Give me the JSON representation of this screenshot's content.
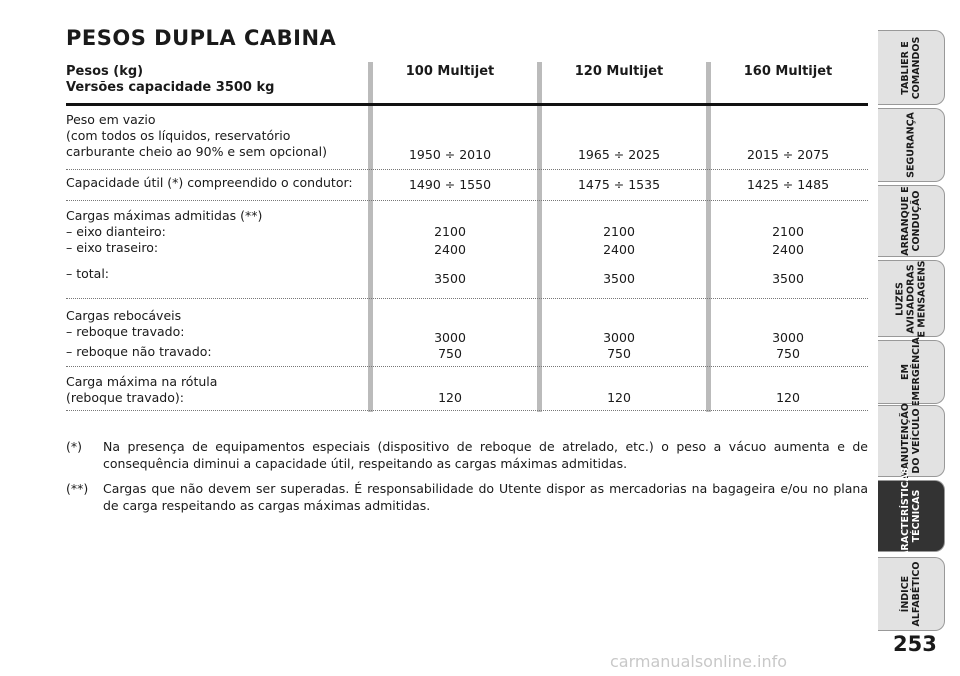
{
  "title": "PESOS DUPLA CABINA",
  "table": {
    "header": {
      "label": [
        "Pesos (kg)",
        "Versões capacidade 3500 kg"
      ],
      "columns": [
        "100 Multijet",
        "120 Multijet",
        "160 Multijet"
      ]
    },
    "rows": [
      {
        "label": [
          "Peso em vazio",
          "(com todos os líquidos, reservatório",
          "carburante cheio ao 90% e sem opcional)"
        ],
        "values": [
          [
            "1950 ÷ 2010"
          ],
          [
            "1965 ÷ 2025"
          ],
          [
            "2015 ÷ 2075"
          ]
        ]
      },
      {
        "label": [
          "Capacidade útil (*) compreendido o condutor:"
        ],
        "values": [
          [
            "1490 ÷ 1550"
          ],
          [
            "1475 ÷ 1535"
          ],
          [
            "1425 ÷ 1485"
          ]
        ]
      },
      {
        "label": [
          "Cargas máximas admitidas (**)",
          "– eixo dianteiro:",
          "– eixo traseiro:",
          "– total:"
        ],
        "values": [
          [
            "2100",
            "2400",
            "3500"
          ],
          [
            "2100",
            "2400",
            "3500"
          ],
          [
            "2100",
            "2400",
            "3500"
          ]
        ]
      },
      {
        "label": [
          "Cargas rebocáveis",
          "– reboque travado:",
          "– reboque não travado:"
        ],
        "values": [
          [
            "3000",
            "750"
          ],
          [
            "3000",
            "750"
          ],
          [
            "3000",
            "750"
          ]
        ]
      },
      {
        "label": [
          "Carga máxima na rótula",
          "(reboque travado):"
        ],
        "values": [
          [
            "120"
          ],
          [
            "120"
          ],
          [
            "120"
          ]
        ]
      }
    ]
  },
  "notes": [
    {
      "mark": "(*)",
      "text": "Na presença de equipamentos especiais (dispositivo de reboque de atrelado, etc.) o peso a vácuo aumenta e de consequência diminui a capacidade útil, respeitando as cargas máximas admitidas."
    },
    {
      "mark": "(**)",
      "text": "Cargas que não devem ser superadas. É responsabilidade do Utente dispor as mercadorias na bagageira e/ou no plana de carga respeitando as cargas máximas admitidas."
    }
  ],
  "tabs": [
    [
      "TABLIER E",
      "COMANDOS"
    ],
    [
      "SEGURANÇA"
    ],
    [
      "ARRANQUE E",
      "CONDUÇÃO"
    ],
    [
      "LUZES",
      "AVISADORAS",
      "E MENSAGENS"
    ],
    [
      "EM",
      "EMERGÊNCIA"
    ],
    [
      "MANUTENÇÃO",
      "DO VEÍCULO"
    ],
    [
      "CARACTERÍSTICAS",
      "TÉCNICAS"
    ],
    [
      "ÍNDICE",
      "ALFABÉTICO"
    ]
  ],
  "active_tab": 6,
  "page_number": "253",
  "watermark": "carmanualsonline.info"
}
